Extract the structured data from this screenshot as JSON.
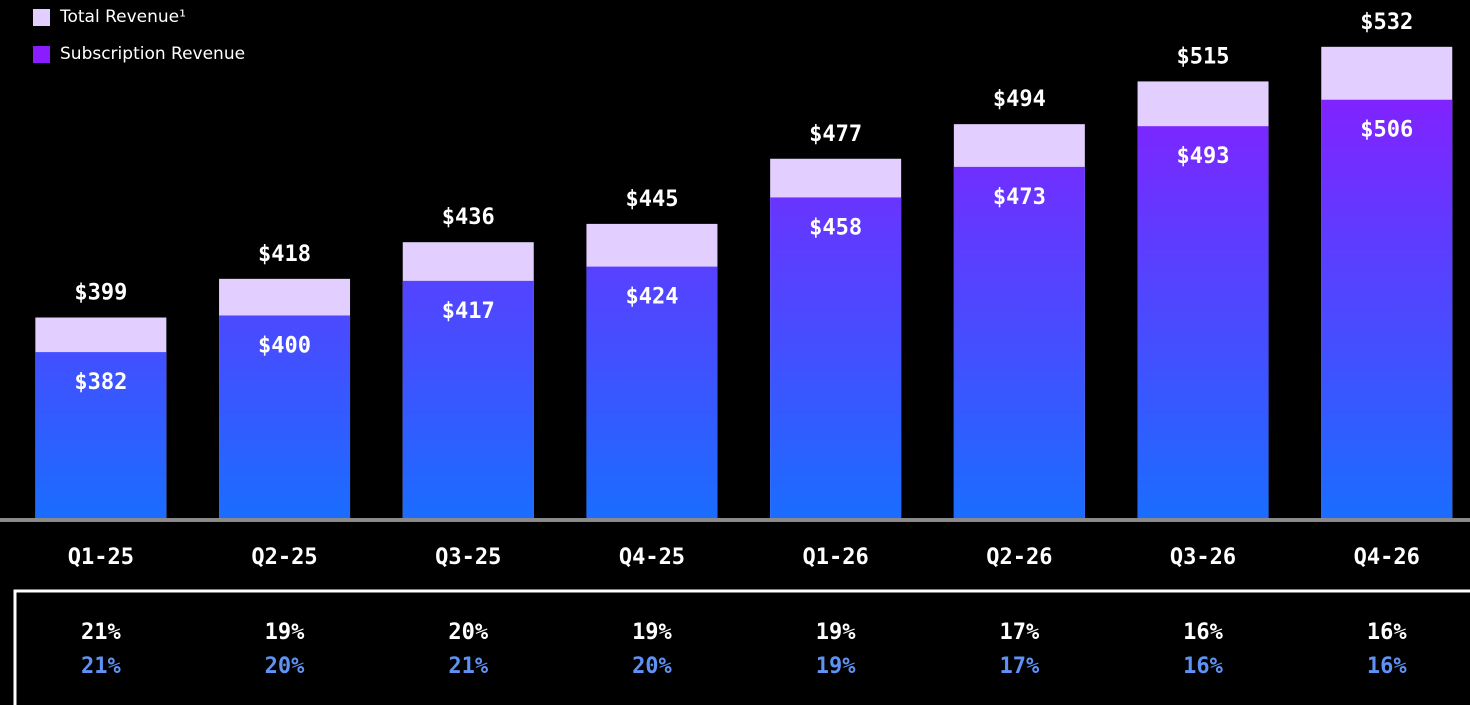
{
  "chart_data": {
    "type": "bar",
    "categories": [
      "Q1-25",
      "Q2-25",
      "Q3-25",
      "Q4-25",
      "Q1-26",
      "Q2-26",
      "Q3-26",
      "Q4-26"
    ],
    "series": [
      {
        "name": "Total Revenue¹",
        "color": "#e2cfff",
        "values": [
          399,
          418,
          436,
          445,
          477,
          494,
          515,
          532
        ],
        "value_labels": [
          "$399",
          "$418",
          "$436",
          "$445",
          "$477",
          "$494",
          "$515",
          "$532"
        ]
      },
      {
        "name": "Subscription Revenue",
        "color": "#8a1cff",
        "gradient_to": "#1a6dff",
        "values": [
          382,
          400,
          417,
          424,
          458,
          473,
          493,
          506
        ],
        "value_labels": [
          "$382",
          "$400",
          "$417",
          "$424",
          "$458",
          "$473",
          "$493",
          "$506"
        ]
      }
    ],
    "ylim": [
      300,
      555
    ],
    "table": {
      "rows": [
        {
          "color": "#ffffff",
          "values": [
            21,
            19,
            20,
            19,
            19,
            17,
            16,
            16
          ],
          "value_labels": [
            "21%",
            "19%",
            "20%",
            "19%",
            "19%",
            "17%",
            "16%",
            "16%"
          ]
        },
        {
          "color": "#5f92f5",
          "values": [
            21,
            20,
            21,
            20,
            19,
            17,
            16,
            16
          ],
          "value_labels": [
            "21%",
            "20%",
            "21%",
            "20%",
            "19%",
            "17%",
            "16%",
            "16%"
          ]
        }
      ]
    }
  }
}
